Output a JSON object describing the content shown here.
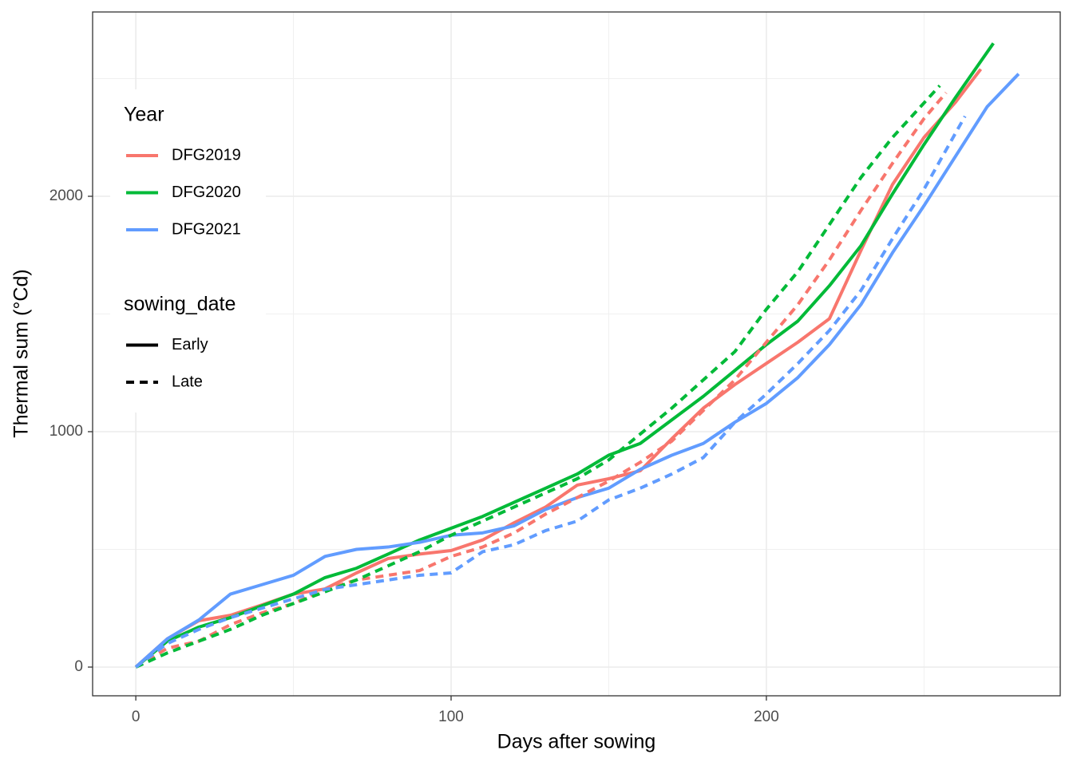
{
  "chart_data": {
    "type": "line",
    "x_label": "Days after sowing",
    "y_label": "Thermal sum (°Cd)",
    "xlim": [
      -13.7,
      293.2
    ],
    "ylim": [
      -122,
      2783
    ],
    "xticks": [
      0,
      100,
      200
    ],
    "yticks": [
      0,
      1000,
      2000
    ],
    "x_minor_grid": [
      50,
      150,
      250
    ],
    "y_minor_grid": [
      500,
      1500,
      2500
    ],
    "grid": true,
    "legend_position": "top-left",
    "legends": [
      {
        "title": "Year",
        "items": [
          {
            "label": "DFG2019",
            "color": "#F8766D"
          },
          {
            "label": "DFG2020",
            "color": "#00BA38"
          },
          {
            "label": "DFG2021",
            "color": "#619CFF"
          }
        ]
      },
      {
        "title": "sowing_date",
        "items": [
          {
            "label": "Early",
            "linetype": "solid"
          },
          {
            "label": "Late",
            "linetype": "dashed"
          }
        ]
      }
    ],
    "series": [
      {
        "color": "#F8766D",
        "linetype": "solid",
        "x": [
          0,
          10,
          20,
          30,
          40,
          50,
          60,
          70,
          80,
          90,
          100,
          110,
          120,
          130,
          140,
          150,
          160,
          170,
          180,
          190,
          200,
          210,
          220,
          230,
          240,
          250,
          260,
          268
        ],
        "values": [
          0,
          120,
          197,
          220,
          264,
          310,
          332,
          400,
          461,
          480,
          495,
          540,
          613,
          680,
          773,
          800,
          834,
          970,
          1100,
          1200,
          1290,
          1380,
          1480,
          1770,
          2050,
          2250,
          2400,
          2540
        ]
      },
      {
        "color": "#00BA38",
        "linetype": "solid",
        "x": [
          0,
          10,
          20,
          30,
          40,
          50,
          60,
          70,
          80,
          90,
          100,
          110,
          120,
          130,
          140,
          150,
          160,
          170,
          180,
          190,
          200,
          210,
          220,
          230,
          240,
          250,
          260,
          272
        ],
        "values": [
          0,
          110,
          170,
          210,
          260,
          310,
          380,
          420,
          480,
          540,
          590,
          640,
          700,
          760,
          820,
          900,
          950,
          1050,
          1150,
          1260,
          1370,
          1470,
          1620,
          1790,
          2010,
          2220,
          2420,
          2650
        ]
      },
      {
        "color": "#619CFF",
        "linetype": "solid",
        "x": [
          0,
          10,
          20,
          30,
          40,
          50,
          60,
          70,
          80,
          90,
          100,
          110,
          120,
          130,
          140,
          150,
          160,
          170,
          180,
          190,
          200,
          210,
          220,
          230,
          240,
          250,
          260,
          270,
          280
        ],
        "values": [
          0,
          120,
          200,
          310,
          350,
          390,
          470,
          500,
          510,
          530,
          560,
          570,
          600,
          670,
          720,
          760,
          840,
          900,
          950,
          1040,
          1120,
          1230,
          1370,
          1540,
          1760,
          1960,
          2170,
          2380,
          2520
        ]
      },
      {
        "color": "#F8766D",
        "linetype": "dashed",
        "x": [
          0,
          10,
          20,
          30,
          40,
          50,
          60,
          70,
          80,
          90,
          100,
          110,
          120,
          130,
          140,
          150,
          160,
          170,
          180,
          190,
          200,
          210,
          220,
          230,
          240,
          250,
          257
        ],
        "values": [
          0,
          80,
          110,
          180,
          230,
          270,
          330,
          370,
          390,
          410,
          470,
          510,
          570,
          650,
          720,
          790,
          870,
          960,
          1090,
          1220,
          1380,
          1540,
          1730,
          1940,
          2140,
          2330,
          2440
        ]
      },
      {
        "color": "#00BA38",
        "linetype": "dashed",
        "x": [
          0,
          10,
          20,
          30,
          40,
          50,
          60,
          70,
          80,
          90,
          100,
          110,
          120,
          130,
          140,
          150,
          160,
          170,
          180,
          190,
          200,
          210,
          220,
          230,
          240,
          255
        ],
        "values": [
          0,
          60,
          110,
          160,
          220,
          270,
          320,
          370,
          430,
          490,
          560,
          620,
          680,
          740,
          800,
          880,
          990,
          1100,
          1220,
          1340,
          1520,
          1680,
          1880,
          2080,
          2250,
          2470
        ]
      },
      {
        "color": "#619CFF",
        "linetype": "dashed",
        "x": [
          0,
          10,
          20,
          30,
          40,
          50,
          60,
          70,
          80,
          90,
          100,
          110,
          120,
          130,
          140,
          150,
          160,
          170,
          180,
          190,
          200,
          210,
          220,
          230,
          240,
          250,
          263
        ],
        "values": [
          0,
          100,
          160,
          210,
          250,
          290,
          330,
          350,
          370,
          390,
          400,
          490,
          520,
          580,
          620,
          710,
          760,
          820,
          890,
          1040,
          1160,
          1290,
          1430,
          1600,
          1820,
          2030,
          2340
        ]
      }
    ]
  }
}
